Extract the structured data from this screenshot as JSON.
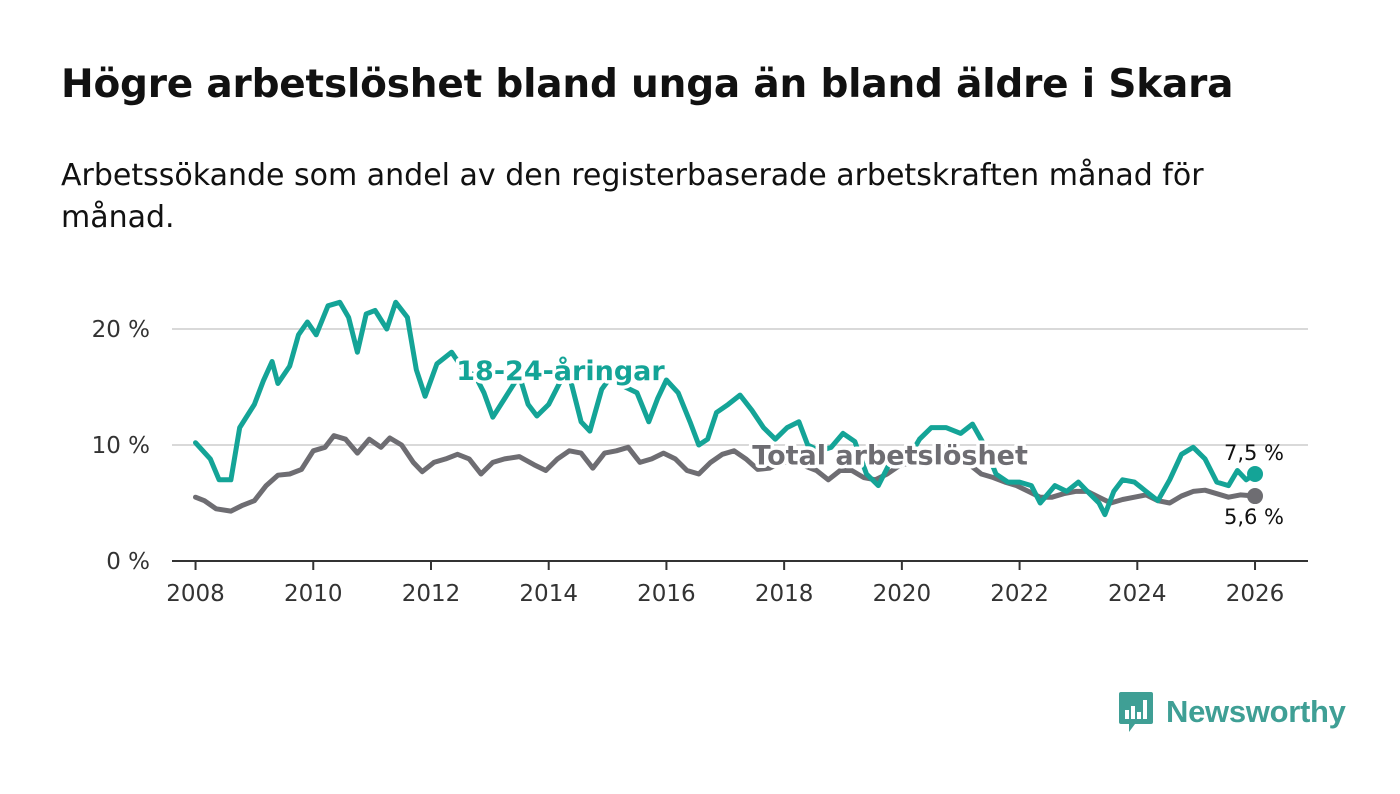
{
  "title": "Högre arbetslöshet bland unga än bland äldre i Skara",
  "subtitle": "Arbetssökande som andel av den registerbaserade arbetskraften månad för månad.",
  "brand": {
    "name": "Newsworthy",
    "icon": "newsworthy-logo-icon",
    "color": "#3f9f95"
  },
  "chart_data": {
    "type": "line",
    "title": "Högre arbetslöshet bland unga än bland äldre i Skara",
    "subtitle": "Arbetssökande som andel av den registerbaserade arbetskraften månad för månad.",
    "xlabel": "",
    "ylabel": "",
    "xlim": [
      2007.6,
      2026.9
    ],
    "ylim": [
      0,
      22.5
    ],
    "grid": true,
    "x_ticks": [
      2008,
      2010,
      2012,
      2014,
      2016,
      2018,
      2020,
      2022,
      2024,
      2026
    ],
    "x_tick_labels": [
      "2008",
      "2010",
      "2012",
      "2014",
      "2016",
      "2018",
      "2020",
      "2022",
      "2024",
      "2026"
    ],
    "y_ticks": [
      0,
      10,
      20
    ],
    "y_tick_labels": [
      "0 %",
      "10 %",
      "20 %"
    ],
    "series": [
      {
        "name": "18-24-åringar",
        "color": "#14a497",
        "end_label": "7,5 %",
        "points": [
          [
            2008.0,
            10.2
          ],
          [
            2008.25,
            8.8
          ],
          [
            2008.4,
            7.0
          ],
          [
            2008.6,
            7.0
          ],
          [
            2008.75,
            11.5
          ],
          [
            2009.0,
            13.5
          ],
          [
            2009.15,
            15.5
          ],
          [
            2009.3,
            17.2
          ],
          [
            2009.4,
            15.3
          ],
          [
            2009.6,
            16.8
          ],
          [
            2009.75,
            19.5
          ],
          [
            2009.9,
            20.6
          ],
          [
            2010.05,
            19.5
          ],
          [
            2010.25,
            22.0
          ],
          [
            2010.45,
            22.3
          ],
          [
            2010.6,
            21.0
          ],
          [
            2010.75,
            18.0
          ],
          [
            2010.9,
            21.3
          ],
          [
            2011.05,
            21.6
          ],
          [
            2011.25,
            20.0
          ],
          [
            2011.4,
            22.3
          ],
          [
            2011.6,
            21.0
          ],
          [
            2011.75,
            16.5
          ],
          [
            2011.9,
            14.2
          ],
          [
            2012.1,
            17.0
          ],
          [
            2012.35,
            18.0
          ],
          [
            2012.55,
            16.5
          ],
          [
            2012.75,
            16.0
          ],
          [
            2012.9,
            14.5
          ],
          [
            2013.05,
            12.4
          ],
          [
            2013.25,
            14.0
          ],
          [
            2013.5,
            16.0
          ],
          [
            2013.65,
            13.5
          ],
          [
            2013.8,
            12.5
          ],
          [
            2014.0,
            13.5
          ],
          [
            2014.2,
            15.5
          ],
          [
            2014.35,
            16.0
          ],
          [
            2014.55,
            12.0
          ],
          [
            2014.7,
            11.2
          ],
          [
            2014.9,
            14.8
          ],
          [
            2015.1,
            16.2
          ],
          [
            2015.3,
            15.0
          ],
          [
            2015.5,
            14.5
          ],
          [
            2015.7,
            12.0
          ],
          [
            2015.85,
            14.0
          ],
          [
            2016.0,
            15.6
          ],
          [
            2016.2,
            14.5
          ],
          [
            2016.4,
            12.0
          ],
          [
            2016.55,
            10.0
          ],
          [
            2016.7,
            10.5
          ],
          [
            2016.85,
            12.8
          ],
          [
            2017.05,
            13.5
          ],
          [
            2017.25,
            14.3
          ],
          [
            2017.45,
            13.0
          ],
          [
            2017.65,
            11.5
          ],
          [
            2017.85,
            10.5
          ],
          [
            2018.05,
            11.5
          ],
          [
            2018.25,
            12.0
          ],
          [
            2018.4,
            10.0
          ],
          [
            2018.6,
            9.5
          ],
          [
            2018.8,
            9.8
          ],
          [
            2019.0,
            11.0
          ],
          [
            2019.2,
            10.3
          ],
          [
            2019.4,
            7.5
          ],
          [
            2019.6,
            6.5
          ],
          [
            2019.8,
            8.5
          ],
          [
            2020.0,
            9.5
          ],
          [
            2020.15,
            9.2
          ],
          [
            2020.3,
            10.5
          ],
          [
            2020.5,
            11.5
          ],
          [
            2020.75,
            11.5
          ],
          [
            2021.0,
            11.0
          ],
          [
            2021.2,
            11.8
          ],
          [
            2021.4,
            10.0
          ],
          [
            2021.6,
            7.5
          ],
          [
            2021.8,
            6.8
          ],
          [
            2022.0,
            6.8
          ],
          [
            2022.2,
            6.5
          ],
          [
            2022.35,
            5.0
          ],
          [
            2022.6,
            6.5
          ],
          [
            2022.8,
            6.0
          ],
          [
            2023.0,
            6.8
          ],
          [
            2023.15,
            6.0
          ],
          [
            2023.35,
            5.0
          ],
          [
            2023.45,
            4.0
          ],
          [
            2023.6,
            6.0
          ],
          [
            2023.75,
            7.0
          ],
          [
            2023.95,
            6.8
          ],
          [
            2024.15,
            6.0
          ],
          [
            2024.35,
            5.2
          ],
          [
            2024.55,
            7.0
          ],
          [
            2024.75,
            9.2
          ],
          [
            2024.95,
            9.8
          ],
          [
            2025.15,
            8.8
          ],
          [
            2025.35,
            6.8
          ],
          [
            2025.55,
            6.5
          ],
          [
            2025.7,
            7.8
          ],
          [
            2025.85,
            7.0
          ],
          [
            2026.0,
            7.5
          ]
        ]
      },
      {
        "name": "Total arbetslöshet",
        "color": "#6e6d72",
        "end_label": "5,6 %",
        "points": [
          [
            2008.0,
            5.5
          ],
          [
            2008.15,
            5.2
          ],
          [
            2008.35,
            4.5
          ],
          [
            2008.6,
            4.3
          ],
          [
            2008.8,
            4.8
          ],
          [
            2009.0,
            5.2
          ],
          [
            2009.2,
            6.5
          ],
          [
            2009.4,
            7.4
          ],
          [
            2009.6,
            7.5
          ],
          [
            2009.8,
            7.9
          ],
          [
            2010.0,
            9.5
          ],
          [
            2010.2,
            9.8
          ],
          [
            2010.35,
            10.8
          ],
          [
            2010.55,
            10.5
          ],
          [
            2010.75,
            9.3
          ],
          [
            2010.95,
            10.5
          ],
          [
            2011.15,
            9.8
          ],
          [
            2011.3,
            10.6
          ],
          [
            2011.5,
            10.0
          ],
          [
            2011.7,
            8.5
          ],
          [
            2011.85,
            7.7
          ],
          [
            2012.05,
            8.5
          ],
          [
            2012.25,
            8.8
          ],
          [
            2012.45,
            9.2
          ],
          [
            2012.65,
            8.8
          ],
          [
            2012.85,
            7.5
          ],
          [
            2013.05,
            8.5
          ],
          [
            2013.25,
            8.8
          ],
          [
            2013.5,
            9.0
          ],
          [
            2013.75,
            8.3
          ],
          [
            2013.95,
            7.8
          ],
          [
            2014.15,
            8.8
          ],
          [
            2014.35,
            9.5
          ],
          [
            2014.55,
            9.3
          ],
          [
            2014.75,
            8.0
          ],
          [
            2014.95,
            9.3
          ],
          [
            2015.15,
            9.5
          ],
          [
            2015.35,
            9.8
          ],
          [
            2015.55,
            8.5
          ],
          [
            2015.75,
            8.8
          ],
          [
            2015.95,
            9.3
          ],
          [
            2016.15,
            8.8
          ],
          [
            2016.35,
            7.8
          ],
          [
            2016.55,
            7.5
          ],
          [
            2016.75,
            8.5
          ],
          [
            2016.95,
            9.2
          ],
          [
            2017.15,
            9.5
          ],
          [
            2017.35,
            8.8
          ],
          [
            2017.55,
            7.9
          ],
          [
            2017.75,
            8.0
          ],
          [
            2017.95,
            8.5
          ],
          [
            2018.15,
            8.5
          ],
          [
            2018.35,
            8.2
          ],
          [
            2018.55,
            7.8
          ],
          [
            2018.75,
            7.0
          ],
          [
            2018.95,
            7.8
          ],
          [
            2019.15,
            7.8
          ],
          [
            2019.35,
            7.2
          ],
          [
            2019.55,
            7.0
          ],
          [
            2019.75,
            7.5
          ],
          [
            2019.95,
            8.2
          ],
          [
            2020.15,
            8.5
          ],
          [
            2020.35,
            8.8
          ],
          [
            2020.55,
            9.2
          ],
          [
            2020.75,
            9.0
          ],
          [
            2020.95,
            8.5
          ],
          [
            2021.15,
            8.3
          ],
          [
            2021.35,
            7.5
          ],
          [
            2021.55,
            7.2
          ],
          [
            2021.75,
            6.8
          ],
          [
            2021.95,
            6.5
          ],
          [
            2022.15,
            6.0
          ],
          [
            2022.35,
            5.5
          ],
          [
            2022.55,
            5.5
          ],
          [
            2022.75,
            5.8
          ],
          [
            2022.95,
            6.0
          ],
          [
            2023.15,
            6.0
          ],
          [
            2023.35,
            5.5
          ],
          [
            2023.55,
            5.0
          ],
          [
            2023.75,
            5.3
          ],
          [
            2023.95,
            5.5
          ],
          [
            2024.15,
            5.7
          ],
          [
            2024.35,
            5.2
          ],
          [
            2024.55,
            5.0
          ],
          [
            2024.75,
            5.6
          ],
          [
            2024.95,
            6.0
          ],
          [
            2025.15,
            6.1
          ],
          [
            2025.35,
            5.8
          ],
          [
            2025.55,
            5.5
          ],
          [
            2025.75,
            5.7
          ],
          [
            2026.0,
            5.6
          ]
        ]
      }
    ],
    "annotations": [
      {
        "text": "18-24-åringar",
        "series": "18-24-åringar",
        "x": 2014.2,
        "y": 15.6
      },
      {
        "text": "Total arbetslöshet",
        "series": "Total arbetslöshet",
        "x": 2019.8,
        "y": 8.3
      }
    ]
  }
}
